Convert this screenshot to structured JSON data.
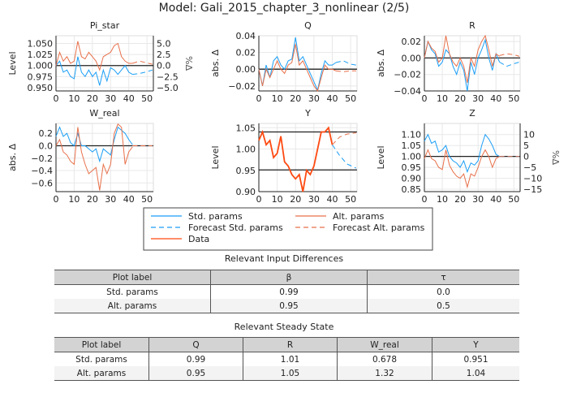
{
  "title": "Model: Gali_2015_chapter_3_nonlinear  (2/5)",
  "colors": {
    "std": "#1a9ef5",
    "alt": "#e8704a",
    "data": "#ff4a12",
    "ref": "#222222"
  },
  "chart_data": [
    {
      "type": "line",
      "title": "Pi_star",
      "ylabel": "Level",
      "ylabel_right": "%Δ",
      "ylim": [
        0.9425,
        1.0675
      ],
      "xlim": [
        0,
        53.5
      ],
      "xticks": [
        0,
        10,
        20,
        30,
        40,
        50
      ],
      "yticks": [
        "0.950",
        "0.975",
        "1.000",
        "1.025",
        "1.050"
      ],
      "yticks_right": [
        "-5.0",
        "-2.5",
        "0.0",
        "2.5",
        "5.0"
      ],
      "hlines": [
        1.0
      ],
      "x": [
        0,
        2,
        4,
        6,
        8,
        10,
        12,
        14,
        16,
        18,
        20,
        22,
        24,
        26,
        28,
        30,
        32,
        34,
        36,
        38,
        40,
        42
      ],
      "x_forecast": [
        42,
        46,
        50,
        53
      ],
      "series": [
        {
          "name": "Std. params",
          "values": [
            1.0,
            1.01,
            0.985,
            0.99,
            0.975,
            0.97,
            1.02,
            0.985,
            0.975,
            0.99,
            0.975,
            0.985,
            0.955,
            0.99,
            0.965,
            0.995,
            0.99,
            0.98,
            0.99,
            1.0,
            0.985,
            0.98
          ],
          "forecast": [
            0.98,
            0.982,
            0.986,
            0.99
          ]
        },
        {
          "name": "Alt. params",
          "values": [
            1.0,
            1.03,
            1.01,
            1.02,
            1.005,
            1.01,
            1.055,
            1.02,
            1.015,
            1.03,
            1.02,
            1.01,
            0.99,
            1.02,
            1.025,
            1.03,
            1.045,
            1.05,
            1.02,
            1.01,
            1.005,
            1.005
          ],
          "forecast": [
            1.005,
            1.01,
            1.006,
            1.003
          ]
        }
      ]
    },
    {
      "type": "line",
      "title": "Q",
      "ylabel": "abs. Δ",
      "ylim": [
        -0.026,
        0.04
      ],
      "xlim": [
        0,
        53.5
      ],
      "xticks": [
        0,
        10,
        20,
        30,
        40,
        50
      ],
      "yticks": [
        "-0.02",
        "0.00",
        "0.02",
        "0.04"
      ],
      "hlines": [
        0
      ],
      "x": [
        0,
        2,
        4,
        6,
        8,
        10,
        12,
        14,
        16,
        18,
        20,
        22,
        24,
        26,
        28,
        30,
        32,
        34,
        36,
        38,
        40,
        42
      ],
      "x_forecast": [
        42,
        46,
        50,
        53
      ],
      "series": [
        {
          "name": "Std. params",
          "values": [
            0.0,
            -0.02,
            0.005,
            -0.01,
            0.01,
            0.015,
            0.005,
            0.0,
            0.01,
            0.012,
            0.038,
            0.01,
            0.015,
            0.005,
            -0.005,
            -0.015,
            -0.025,
            -0.005,
            0.01,
            0.005,
            0.005,
            0.008
          ],
          "forecast": [
            0.008,
            0.01,
            0.006,
            0.005
          ]
        },
        {
          "name": "Alt. params",
          "values": [
            0.0,
            -0.02,
            0.0,
            -0.01,
            0.0,
            0.01,
            0.0,
            -0.005,
            0.005,
            0.008,
            0.03,
            0.005,
            0.01,
            0.0,
            -0.01,
            -0.02,
            -0.026,
            -0.01,
            0.005,
            0.0,
            0.0,
            -0.002
          ],
          "forecast": [
            -0.002,
            -0.003,
            -0.002,
            -0.002
          ]
        }
      ]
    },
    {
      "type": "line",
      "title": "R",
      "ylabel": "abs. Δ",
      "ylim": [
        -0.04,
        0.027
      ],
      "xlim": [
        0,
        53.5
      ],
      "xticks": [
        0,
        10,
        20,
        30,
        40,
        50
      ],
      "yticks": [
        "-0.04",
        "-0.02",
        "0.00",
        "0.02"
      ],
      "hlines": [
        0
      ],
      "x": [
        0,
        2,
        4,
        6,
        8,
        10,
        12,
        14,
        16,
        18,
        20,
        22,
        24,
        26,
        28,
        30,
        32,
        34,
        36,
        38,
        40,
        42
      ],
      "x_forecast": [
        42,
        46,
        50,
        53
      ],
      "series": [
        {
          "name": "Std. params",
          "values": [
            0.0,
            0.02,
            0.01,
            0.005,
            -0.01,
            -0.005,
            0.01,
            0.005,
            -0.01,
            -0.02,
            -0.005,
            -0.015,
            -0.04,
            -0.005,
            -0.02,
            0.0,
            0.01,
            0.022,
            0.0,
            -0.015,
            0.005,
            -0.005
          ],
          "forecast": [
            -0.005,
            -0.01,
            -0.007,
            -0.005
          ]
        },
        {
          "name": "Alt. params",
          "values": [
            0.0,
            0.02,
            0.012,
            0.008,
            -0.005,
            0.0,
            0.027,
            0.005,
            -0.005,
            -0.01,
            0.0,
            -0.01,
            -0.03,
            0.0,
            -0.01,
            0.01,
            0.02,
            0.027,
            0.01,
            -0.01,
            0.005,
            0.002
          ],
          "forecast": [
            0.003,
            0.005,
            0.004,
            0.002
          ]
        }
      ]
    },
    {
      "type": "line",
      "title": "W_real",
      "ylabel": "abs. Δ",
      "ylim": [
        -0.74,
        0.36
      ],
      "xlim": [
        0,
        53.5
      ],
      "xticks": [
        0,
        10,
        20,
        30,
        40,
        50
      ],
      "yticks": [
        "-0.6",
        "-0.4",
        "-0.2",
        "0.0",
        "0.2"
      ],
      "hlines": [
        0
      ],
      "x": [
        0,
        2,
        4,
        6,
        8,
        10,
        12,
        14,
        16,
        18,
        20,
        22,
        24,
        26,
        28,
        30,
        32,
        34,
        36,
        38,
        40,
        42
      ],
      "x_forecast": [
        42,
        46,
        50,
        53
      ],
      "series": [
        {
          "name": "Std. params",
          "values": [
            0.15,
            0.3,
            0.15,
            0.2,
            0.05,
            0.0,
            0.2,
            0.0,
            0.0,
            -0.05,
            -0.1,
            -0.05,
            -0.25,
            -0.05,
            -0.1,
            -0.15,
            0.1,
            0.3,
            0.25,
            0.2,
            0.1,
            0.02
          ],
          "forecast": [
            0,
            0,
            0,
            0
          ]
        },
        {
          "name": "Alt. params",
          "values": [
            0.0,
            0.1,
            -0.1,
            -0.15,
            -0.25,
            -0.3,
            0.3,
            -0.1,
            -0.3,
            -0.45,
            -0.4,
            -0.35,
            -0.72,
            -0.3,
            -0.45,
            -0.3,
            0.2,
            0.35,
            0.3,
            -0.3,
            -0.1,
            -0.02
          ],
          "forecast": [
            0,
            0,
            0,
            0
          ]
        }
      ]
    },
    {
      "type": "line",
      "title": "Y",
      "ylabel": "Level",
      "ylim": [
        0.9,
        1.06
      ],
      "xlim": [
        0,
        53.5
      ],
      "xticks": [
        0,
        10,
        20,
        30,
        40,
        50
      ],
      "yticks": [
        "0.90",
        "0.95",
        "1.00",
        "1.05"
      ],
      "hlines": [
        1.04,
        0.951
      ],
      "x": [
        0,
        2,
        4,
        6,
        8,
        10,
        12,
        14,
        16,
        18,
        20,
        22,
        24,
        26,
        28,
        30,
        32,
        34,
        36,
        38,
        40
      ],
      "x_forecast": [
        40,
        44,
        48,
        53
      ],
      "series": [
        {
          "name": "Data",
          "values": [
            1.02,
            1.04,
            1.01,
            1.02,
            0.98,
            0.99,
            1.03,
            0.97,
            0.96,
            0.94,
            0.93,
            0.94,
            0.9,
            0.95,
            0.94,
            0.96,
            1.0,
            1.04,
            1.04,
            1.05,
            1.01
          ]
        },
        {
          "name": "Forecast Std. params",
          "forecast": [
            1.01,
            0.985,
            0.965,
            0.955
          ]
        },
        {
          "name": "Forecast Alt. params",
          "forecast": [
            1.01,
            1.028,
            1.035,
            1.038
          ]
        }
      ]
    },
    {
      "type": "line",
      "title": "Z",
      "ylabel": "Level",
      "ylabel_right": "%Δ",
      "ylim": [
        0.839,
        1.151
      ],
      "xlim": [
        0,
        53.5
      ],
      "xticks": [
        0,
        10,
        20,
        30,
        40,
        50
      ],
      "yticks": [
        "0.85",
        "0.90",
        "0.95",
        "1.00",
        "1.05",
        "1.10"
      ],
      "yticks_right": [
        "-15",
        "-10",
        "-5",
        "0",
        "5",
        "10"
      ],
      "hlines": [
        1.0
      ],
      "x": [
        0,
        2,
        4,
        6,
        8,
        10,
        12,
        14,
        16,
        18,
        20,
        22,
        24,
        26,
        28,
        30,
        32,
        34,
        36,
        38,
        40,
        42
      ],
      "x_forecast": [
        42,
        46,
        50,
        53
      ],
      "series": [
        {
          "name": "Std. params",
          "values": [
            1.07,
            1.1,
            1.06,
            1.07,
            1.02,
            1.03,
            1.05,
            1.0,
            0.98,
            0.97,
            0.95,
            0.98,
            0.93,
            0.97,
            0.96,
            0.98,
            1.05,
            1.1,
            1.08,
            1.05,
            1.01,
            1.0
          ],
          "forecast": [
            1,
            1,
            1,
            1
          ]
        },
        {
          "name": "Alt. params",
          "values": [
            0.99,
            1.03,
            0.99,
            0.98,
            0.95,
            0.94,
            1.03,
            0.96,
            0.93,
            0.91,
            0.9,
            0.92,
            0.86,
            0.92,
            0.91,
            0.95,
            1.0,
            1.03,
            1.0,
            0.95,
            0.99,
            1.0
          ],
          "forecast": [
            1,
            1,
            1,
            1
          ]
        }
      ]
    }
  ],
  "legend": [
    "Std. params",
    "Alt. params",
    "Forecast Std. params",
    "Forecast Alt. params",
    "Data"
  ],
  "input_diff": {
    "title": "Relevant Input Differences",
    "headers": [
      "Plot label",
      "β",
      "τ"
    ],
    "rows": [
      [
        "Std. params",
        "0.99",
        "0.0"
      ],
      [
        "Alt. params",
        "0.95",
        "0.5"
      ]
    ]
  },
  "steady_state": {
    "title": "Relevant Steady State",
    "headers": [
      "Plot label",
      "Q",
      "R",
      "W_real",
      "Y"
    ],
    "rows": [
      [
        "Std. params",
        "0.99",
        "1.01",
        "0.678",
        "0.951"
      ],
      [
        "Alt. params",
        "0.95",
        "1.05",
        "1.32",
        "1.04"
      ]
    ]
  }
}
